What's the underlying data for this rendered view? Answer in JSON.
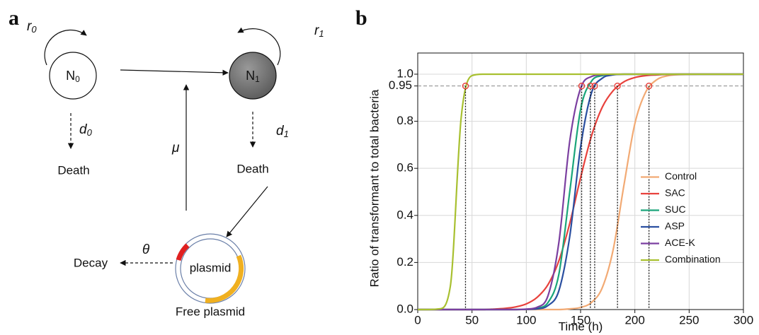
{
  "panel_a": {
    "label": "a",
    "nodes": [
      {
        "base": "N",
        "sub": "0"
      },
      {
        "base": "N",
        "sub": "1"
      }
    ],
    "rates": [
      {
        "base": "r",
        "sub": "0"
      },
      {
        "base": "r",
        "sub": "1"
      },
      {
        "base": "d",
        "sub": "0"
      },
      {
        "base": "d",
        "sub": "1"
      }
    ],
    "mu": "μ",
    "theta": "θ",
    "death": [
      "Death",
      "Death"
    ],
    "plasmid": "plasmid",
    "free_plasmid": "Free plasmid",
    "decay": "Decay"
  },
  "chart_data": {
    "type": "line",
    "panel_label": "b",
    "xlabel": "Time (h)",
    "ylabel": "Ratio of transformant to total bacteria",
    "x": [
      0,
      10,
      20,
      30,
      40,
      50,
      60,
      70,
      80,
      90,
      100,
      110,
      120,
      130,
      140,
      150,
      160,
      170,
      180,
      190,
      200,
      210,
      220,
      230,
      240,
      250,
      260,
      270,
      280,
      290,
      300
    ],
    "series": [
      {
        "name": "Control",
        "color": "#f2aa74",
        "crossing": 213,
        "values": [
          0,
          0,
          0,
          0,
          0,
          0,
          0,
          0,
          0,
          0,
          0,
          0,
          0,
          0,
          0.003,
          0.009,
          0.03,
          0.093,
          0.254,
          0.53,
          0.79,
          0.924,
          0.976,
          0.993,
          0.998,
          0.999,
          1,
          1,
          1,
          1,
          1
        ]
      },
      {
        "name": "SAC",
        "color": "#e8413c",
        "crossing": 184,
        "values": [
          0,
          0,
          0,
          0,
          0,
          0,
          0,
          0.002,
          0.005,
          0.011,
          0.024,
          0.052,
          0.106,
          0.207,
          0.366,
          0.56,
          0.737,
          0.86,
          0.93,
          0.968,
          0.986,
          0.994,
          0.997,
          0.999,
          1,
          1,
          1,
          1,
          1,
          1,
          1
        ]
      },
      {
        "name": "SUC",
        "color": "#1aa57a",
        "crossing": 159,
        "values": [
          0,
          0,
          0,
          0,
          0,
          0,
          0,
          0,
          0,
          0,
          0.001,
          0.006,
          0.03,
          0.15,
          0.5,
          0.85,
          0.97,
          0.994,
          0.999,
          1,
          1,
          1,
          1,
          1,
          1,
          1,
          1,
          1,
          1,
          1,
          1
        ]
      },
      {
        "name": "ASP",
        "color": "#2a4fa0",
        "crossing": 163,
        "values": [
          0,
          0,
          0,
          0,
          0,
          0,
          0,
          0,
          0,
          0,
          0.001,
          0.003,
          0.017,
          0.08,
          0.31,
          0.69,
          0.92,
          0.983,
          0.997,
          1,
          1,
          1,
          1,
          1,
          1,
          1,
          1,
          1,
          1,
          1,
          1
        ]
      },
      {
        "name": "ACE-K",
        "color": "#7b3fa0",
        "crossing": 151,
        "values": [
          0,
          0,
          0,
          0,
          0,
          0,
          0,
          0,
          0,
          0,
          0.002,
          0.01,
          0.059,
          0.285,
          0.715,
          0.94,
          0.99,
          0.998,
          1,
          1,
          1,
          1,
          1,
          1,
          1,
          1,
          1,
          1,
          1,
          1,
          1
        ]
      },
      {
        "name": "Combination",
        "color": "#a8c030",
        "crossing": 44,
        "values": [
          0,
          0,
          0.003,
          0.098,
          0.815,
          0.994,
          1,
          1,
          1,
          1,
          1,
          1,
          1,
          1,
          1,
          1,
          1,
          1,
          1,
          1,
          1,
          1,
          1,
          1,
          1,
          1,
          1,
          1,
          1,
          1,
          1
        ]
      }
    ],
    "threshold": 0.95,
    "xlim": [
      0,
      300
    ],
    "ylim": [
      0,
      1.09
    ],
    "xticks": [
      0,
      50,
      100,
      150,
      200,
      250,
      300
    ],
    "yticks": [
      {
        "value": 0,
        "label": "0.0"
      },
      0.2,
      0.4,
      0.6,
      0.8,
      0.95,
      {
        "value": 1,
        "label": "1.0"
      }
    ],
    "grid": true,
    "legend": "lower right"
  }
}
